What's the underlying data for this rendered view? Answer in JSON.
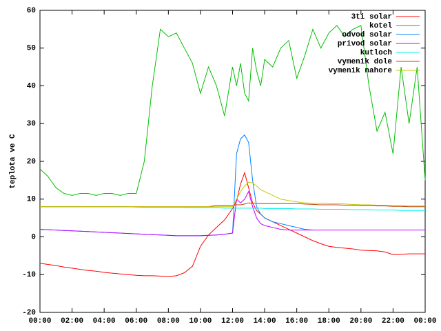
{
  "chart_data": {
    "type": "line",
    "y_label": "teplota ve C",
    "x": [
      0,
      0.5,
      1,
      1.5,
      2,
      2.5,
      3,
      3.5,
      4,
      4.5,
      5,
      5.5,
      6,
      6.5,
      7,
      7.5,
      8,
      8.5,
      9,
      9.5,
      10,
      10.5,
      11,
      11.5,
      12,
      12.25,
      12.5,
      12.75,
      13,
      13.25,
      13.5,
      13.75,
      14,
      14.5,
      15,
      15.5,
      16,
      16.5,
      17,
      17.5,
      18,
      18.5,
      19,
      19.5,
      20,
      20.5,
      21,
      21.5,
      22,
      22.5,
      23,
      23.5,
      24
    ],
    "xlim": [
      0,
      24
    ],
    "xticks": [
      {
        "value": 0,
        "label": "00:00"
      },
      {
        "value": 2,
        "label": "02:00"
      },
      {
        "value": 4,
        "label": "04:00"
      },
      {
        "value": 6,
        "label": "06:00"
      },
      {
        "value": 8,
        "label": "08:00"
      },
      {
        "value": 10,
        "label": "10:00"
      },
      {
        "value": 12,
        "label": "12:00"
      },
      {
        "value": 14,
        "label": "14:00"
      },
      {
        "value": 16,
        "label": "16:00"
      },
      {
        "value": 18,
        "label": "18:00"
      },
      {
        "value": 20,
        "label": "20:00"
      },
      {
        "value": 22,
        "label": "22:00"
      },
      {
        "value": 24,
        "label": "00:00"
      }
    ],
    "ylim": [
      -20,
      60
    ],
    "yticks": [
      -20,
      -10,
      0,
      10,
      20,
      30,
      40,
      50,
      60
    ],
    "legend": "top-right",
    "series": [
      {
        "name": "3ti solar",
        "color": "#ff0000",
        "values": [
          -7,
          -7.3,
          -7.6,
          -8,
          -8.3,
          -8.6,
          -8.9,
          -9.1,
          -9.4,
          -9.6,
          -9.8,
          -10,
          -10.2,
          -10.3,
          -10.3,
          -10.4,
          -10.5,
          -10.3,
          -9.5,
          -7.8,
          -2.5,
          0.5,
          2.5,
          4.5,
          7.5,
          9.5,
          14,
          17,
          13,
          9,
          7,
          6,
          5,
          4,
          3,
          2,
          1,
          0,
          -1,
          -1.8,
          -2.5,
          -2.8,
          -3,
          -3.2,
          -3.5,
          -3.6,
          -3.7,
          -4,
          -4.7,
          -4.6,
          -4.5,
          -4.5,
          -4.5
        ]
      },
      {
        "name": "kotel",
        "color": "#00c000",
        "values": [
          18,
          16,
          13,
          11.5,
          11,
          11.5,
          11.5,
          11,
          11.5,
          11.5,
          11,
          11.5,
          11.5,
          20,
          40,
          55,
          53,
          54,
          50,
          46,
          38,
          45,
          40,
          32,
          45,
          40,
          46,
          38,
          36,
          50,
          44,
          40,
          47,
          45,
          50,
          52,
          42,
          48,
          55,
          50,
          54,
          56,
          53,
          55,
          56,
          40,
          28,
          33,
          22,
          45,
          30,
          45,
          15
        ]
      },
      {
        "name": "odvod solar",
        "color": "#0080ff",
        "values": [
          2,
          1.9,
          1.8,
          1.7,
          1.6,
          1.5,
          1.4,
          1.3,
          1.2,
          1.1,
          1,
          0.9,
          0.8,
          0.7,
          0.6,
          0.5,
          0.4,
          0.3,
          0.3,
          0.3,
          0.3,
          0.4,
          0.5,
          0.7,
          1,
          22,
          26,
          27,
          25,
          15,
          8,
          6,
          5,
          4,
          3.5,
          3,
          2.5,
          2,
          1.8,
          null,
          null,
          null,
          null,
          null,
          null,
          null,
          null,
          null,
          null,
          null,
          null,
          null,
          null
        ]
      },
      {
        "name": "privod solar",
        "color": "#c000ff",
        "values": [
          2,
          1.9,
          1.8,
          1.7,
          1.6,
          1.5,
          1.4,
          1.3,
          1.2,
          1.1,
          1,
          0.9,
          0.8,
          0.7,
          0.6,
          0.5,
          0.4,
          0.3,
          0.3,
          0.3,
          0.3,
          0.4,
          0.5,
          0.7,
          1,
          10,
          9,
          10,
          12,
          8,
          5,
          3.5,
          3,
          2.5,
          2,
          1.8,
          1.8,
          1.8,
          1.8,
          1.8,
          1.8,
          1.8,
          1.8,
          1.8,
          1.8,
          1.8,
          1.8,
          1.8,
          1.8,
          1.8,
          1.8,
          1.8,
          1.8
        ]
      },
      {
        "name": "kutloch",
        "color": "#00eeee",
        "values": [
          8,
          8,
          8,
          8,
          8,
          8,
          8,
          8,
          8,
          8,
          8,
          8,
          7.9,
          7.8,
          7.8,
          7.8,
          7.8,
          7.8,
          7.8,
          7.7,
          7.7,
          7.7,
          7.7,
          7.6,
          7.6,
          7.6,
          7.6,
          7.6,
          7.6,
          7.6,
          7.6,
          7.6,
          7.5,
          7.5,
          7.5,
          7.5,
          7.4,
          7.4,
          7.4,
          7.3,
          7.3,
          7.3,
          7.3,
          7.2,
          7.2,
          7.2,
          7.1,
          7.1,
          7.1,
          7,
          7,
          7,
          7
        ]
      },
      {
        "name": "vymenik dole",
        "color": "#c04000",
        "values": [
          8,
          8,
          8,
          8,
          8,
          8,
          8,
          8,
          8,
          8,
          8,
          8,
          8,
          8,
          8,
          8,
          8,
          8,
          8,
          8,
          8,
          8,
          8.3,
          8.3,
          8.3,
          8.5,
          8.5,
          8.7,
          9,
          8.9,
          8.9,
          8.8,
          8.8,
          8.8,
          8.8,
          8.8,
          8.8,
          8.7,
          8.6,
          8.5,
          8.5,
          8.5,
          8.4,
          8.4,
          8.3,
          8.3,
          8.2,
          8.2,
          8.1,
          8.1,
          8,
          8,
          8
        ]
      },
      {
        "name": "vymenik nahore",
        "color": "#c8c800",
        "values": [
          8,
          8,
          8,
          8,
          8,
          8,
          8,
          8,
          8,
          8,
          8,
          8,
          8,
          8,
          8,
          8,
          8,
          8,
          8,
          8,
          8,
          8,
          8,
          8,
          8,
          10,
          12,
          13.5,
          14.5,
          14.3,
          13.5,
          12.5,
          12,
          11,
          10,
          9.6,
          9.3,
          9,
          8.9,
          8.9,
          8.8,
          8.8,
          8.7,
          8.6,
          8.5,
          8.5,
          8.4,
          8.4,
          8.3,
          8.3,
          8.2,
          8.2,
          8.2
        ]
      }
    ]
  }
}
